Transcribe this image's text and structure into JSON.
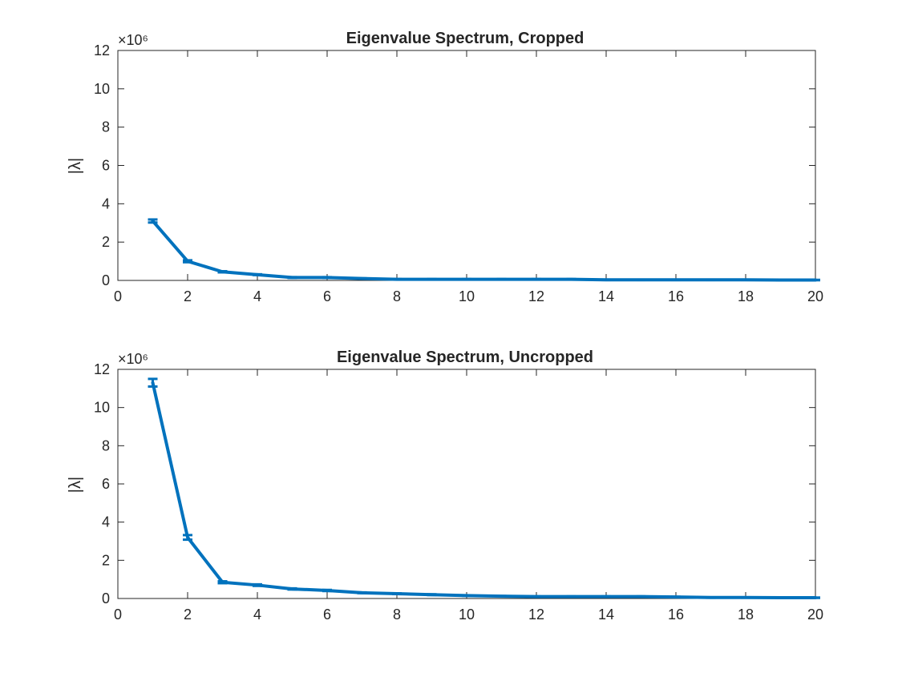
{
  "chart_data": [
    {
      "type": "line",
      "title": "Eigenvalue Spectrum, Cropped",
      "xlabel": "",
      "ylabel": "|λ|",
      "y_multiplier": "×10⁶",
      "xlim": [
        0,
        20
      ],
      "ylim": [
        0,
        12
      ],
      "xticks": [
        0,
        2,
        4,
        6,
        8,
        10,
        12,
        14,
        16,
        18,
        20
      ],
      "yticks": [
        0,
        2,
        4,
        6,
        8,
        10,
        12
      ],
      "grid": false,
      "series": [
        {
          "color": "#0072BD",
          "x": [
            1,
            2,
            3,
            4,
            5,
            6,
            7,
            8,
            9,
            10,
            11,
            12,
            13,
            14,
            15,
            16,
            17,
            18,
            19,
            20
          ],
          "y": [
            3.1,
            1.0,
            0.45,
            0.3,
            0.15,
            0.15,
            0.1,
            0.06,
            0.06,
            0.06,
            0.06,
            0.06,
            0.06,
            0.03,
            0.03,
            0.03,
            0.03,
            0.03,
            0.02,
            0.02
          ],
          "err": [
            0.08,
            0.05,
            0.03,
            0.02,
            0.02,
            0.02,
            0.01,
            0.01,
            0.01,
            0.01,
            0.01,
            0.01,
            0.01,
            0.01,
            0.01,
            0.01,
            0.01,
            0.01,
            0.01,
            0.01
          ]
        }
      ]
    },
    {
      "type": "line",
      "title": "Eigenvalue Spectrum, Uncropped",
      "xlabel": "",
      "ylabel": "|λ|",
      "y_multiplier": "×10⁶",
      "xlim": [
        0,
        20
      ],
      "ylim": [
        0,
        12
      ],
      "xticks": [
        0,
        2,
        4,
        6,
        8,
        10,
        12,
        14,
        16,
        18,
        20
      ],
      "yticks": [
        0,
        2,
        4,
        6,
        8,
        10,
        12
      ],
      "grid": false,
      "series": [
        {
          "color": "#0072BD",
          "x": [
            1,
            2,
            3,
            4,
            5,
            6,
            7,
            8,
            9,
            10,
            11,
            12,
            13,
            14,
            15,
            16,
            17,
            18,
            19,
            20
          ],
          "y": [
            11.3,
            3.2,
            0.85,
            0.7,
            0.5,
            0.42,
            0.3,
            0.25,
            0.2,
            0.15,
            0.12,
            0.1,
            0.1,
            0.1,
            0.1,
            0.08,
            0.05,
            0.05,
            0.04,
            0.04
          ],
          "err": [
            0.2,
            0.12,
            0.05,
            0.04,
            0.03,
            0.03,
            0.02,
            0.02,
            0.02,
            0.01,
            0.01,
            0.01,
            0.01,
            0.01,
            0.01,
            0.01,
            0.01,
            0.01,
            0.01,
            0.01
          ]
        }
      ]
    }
  ]
}
